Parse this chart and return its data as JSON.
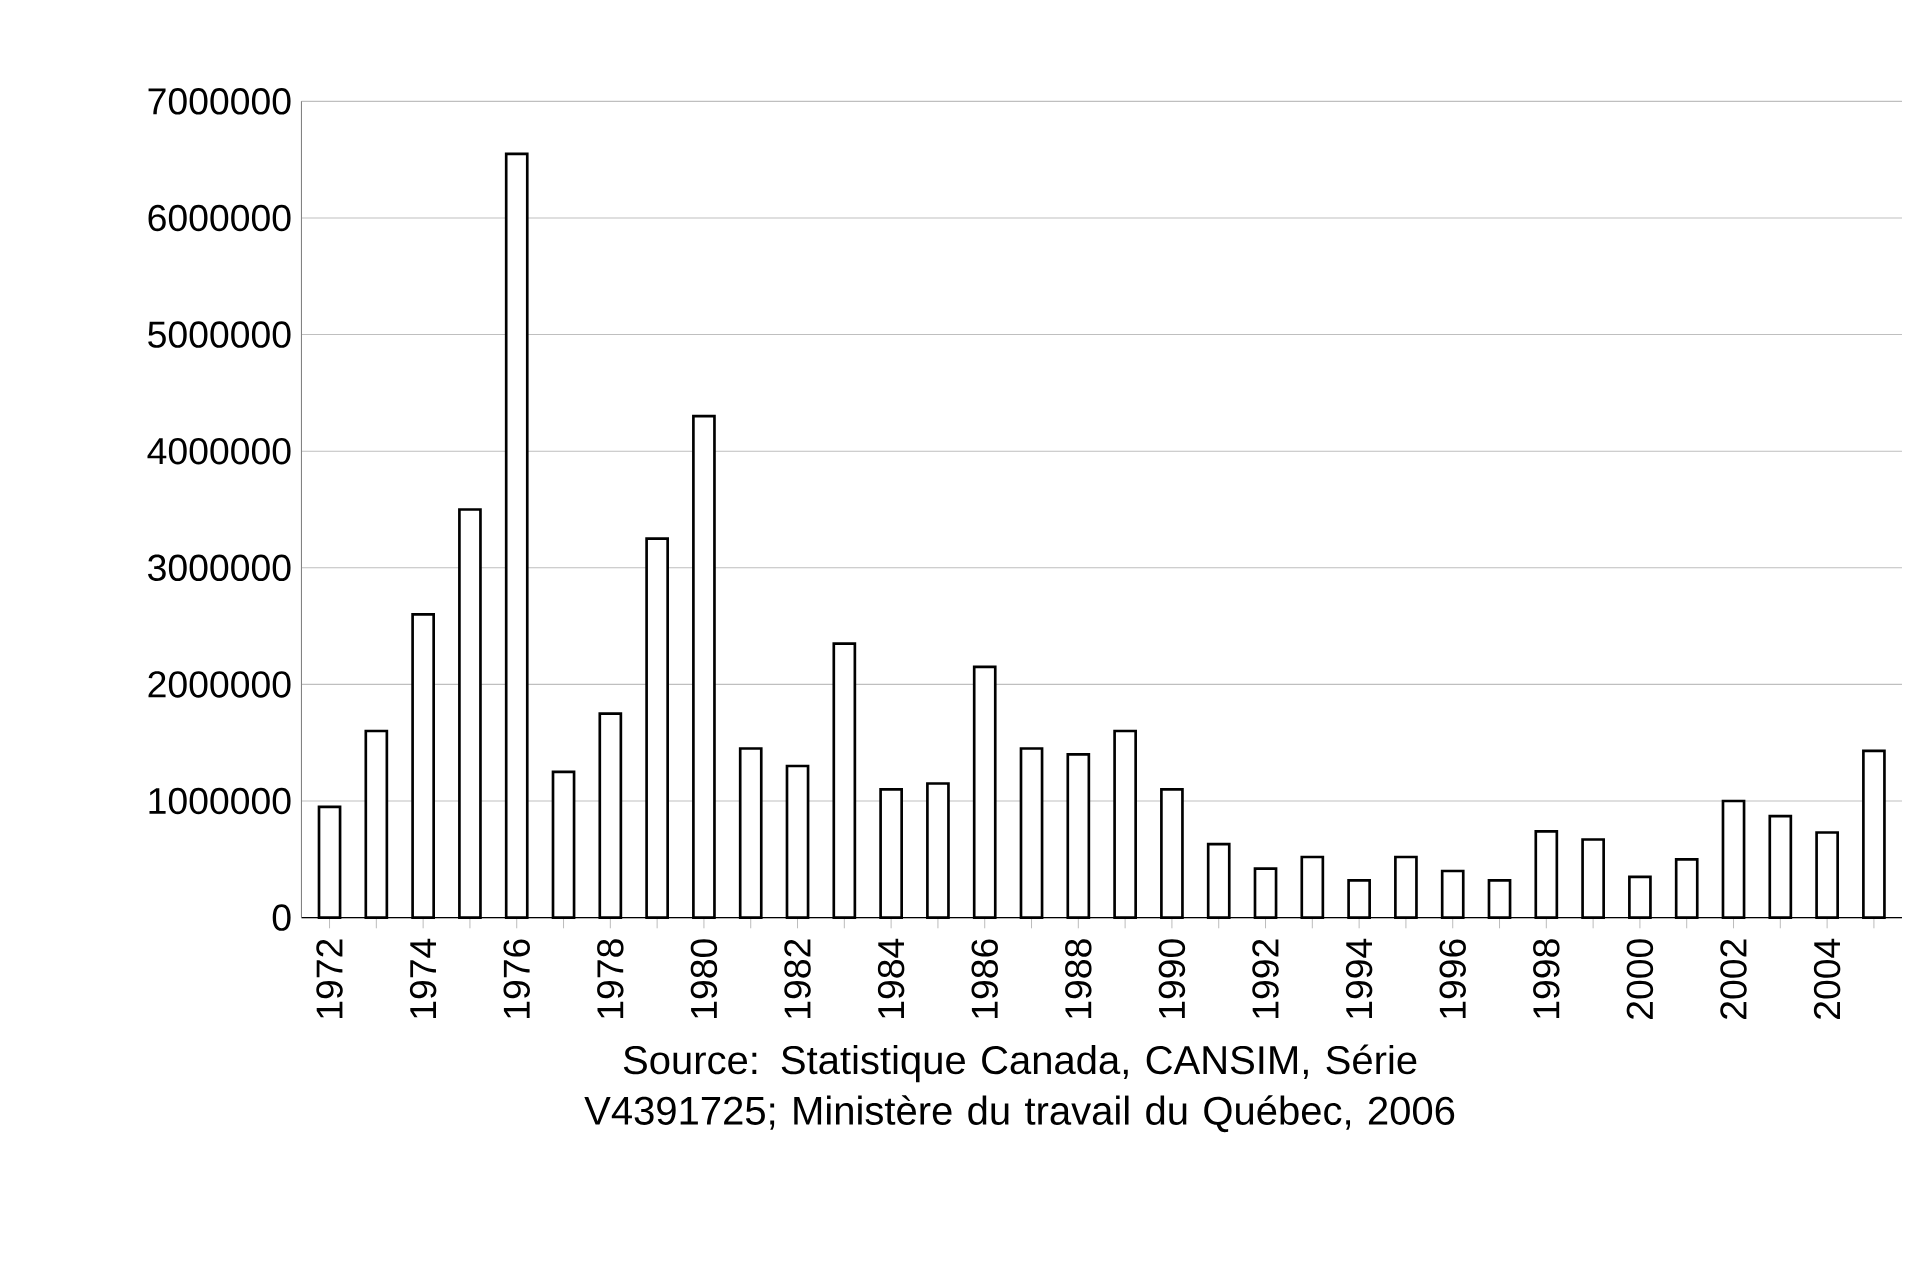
{
  "chart_data": {
    "type": "bar",
    "categories": [
      "1972",
      null,
      "1974",
      null,
      "1976",
      null,
      "1978",
      null,
      "1980",
      null,
      "1982",
      null,
      "1984",
      null,
      "1986",
      null,
      "1988",
      null,
      "1990",
      null,
      "1992",
      null,
      "1994",
      null,
      "1996",
      null,
      "1998",
      null,
      "2000",
      null,
      "2002",
      null,
      "2004",
      null
    ],
    "values": [
      950000,
      1600000,
      2600000,
      3500000,
      6550000,
      1250000,
      1750000,
      3250000,
      4300000,
      1450000,
      1300000,
      2350000,
      1100000,
      1150000,
      2150000,
      1450000,
      1400000,
      1600000,
      1100000,
      630000,
      420000,
      520000,
      320000,
      520000,
      400000,
      320000,
      740000,
      670000,
      350000,
      500000,
      1000000,
      870000,
      730000,
      1430000
    ],
    "color": "#ffffff",
    "ylim": [
      0,
      7000000
    ],
    "yticks": [
      0,
      1000000,
      2000000,
      3000000,
      4000000,
      5000000,
      6000000,
      7000000
    ],
    "grid": "y",
    "annotations": [
      "Source: Statistique Canada, CANSIM, Série V4391725; Ministère du travail du Québec, 2006"
    ]
  }
}
